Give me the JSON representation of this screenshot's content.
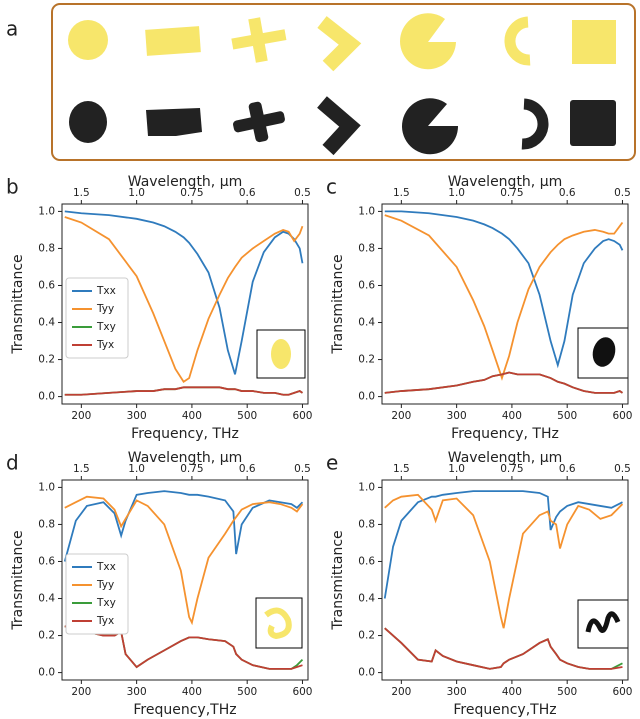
{
  "panel_a": {
    "label": "a"
  },
  "chart_data": [
    {
      "type": "line",
      "panel_label": "b",
      "x2_title": "Wavelength, µm",
      "x_title": "Frequency, THz",
      "y_title": "Transmittance",
      "xlim": [
        165,
        610
      ],
      "xticks": [
        200,
        300,
        400,
        500,
        600
      ],
      "x2lim": [
        1.81818,
        0.491803
      ],
      "x2scale": "reciprocal",
      "x2ticks": [
        1.5,
        {
          "value": 1,
          "label": "1.0"
        },
        0.75,
        0.6,
        0.5
      ],
      "ylim": [
        -0.04,
        1.04
      ],
      "yticks": [
        {
          "value": 0,
          "label": "0.0"
        },
        0.2,
        0.4,
        0.6,
        0.8,
        {
          "value": 1,
          "label": "1.0"
        }
      ],
      "legend": true,
      "legend_loc": "center left",
      "x": [
        170,
        200,
        250,
        300,
        330,
        350,
        370,
        385,
        395,
        410,
        430,
        450,
        465,
        478,
        490,
        510,
        530,
        550,
        565,
        575,
        585,
        595,
        600
      ],
      "series": [
        {
          "name": "Txx",
          "color": "#2f7bbd",
          "values": [
            1.0,
            0.99,
            0.98,
            0.96,
            0.94,
            0.92,
            0.89,
            0.86,
            0.83,
            0.77,
            0.67,
            0.48,
            0.25,
            0.12,
            0.3,
            0.62,
            0.78,
            0.86,
            0.89,
            0.88,
            0.85,
            0.8,
            0.72
          ]
        },
        {
          "name": "Tyy",
          "color": "#f5922f",
          "values": [
            0.97,
            0.94,
            0.85,
            0.65,
            0.45,
            0.3,
            0.15,
            0.08,
            0.1,
            0.25,
            0.42,
            0.55,
            0.64,
            0.7,
            0.75,
            0.8,
            0.84,
            0.88,
            0.9,
            0.89,
            0.84,
            0.88,
            0.92
          ]
        },
        {
          "name": "Txy",
          "color": "#3a9c3a",
          "values": [
            0.01,
            0.01,
            0.02,
            0.03,
            0.03,
            0.04,
            0.04,
            0.05,
            0.05,
            0.05,
            0.05,
            0.05,
            0.04,
            0.04,
            0.03,
            0.03,
            0.02,
            0.02,
            0.01,
            0.01,
            0.02,
            0.03,
            0.02
          ]
        },
        {
          "name": "Tyx",
          "color": "#bf3f34",
          "values": [
            0.01,
            0.01,
            0.02,
            0.03,
            0.03,
            0.04,
            0.04,
            0.05,
            0.05,
            0.05,
            0.05,
            0.05,
            0.04,
            0.04,
            0.03,
            0.03,
            0.02,
            0.02,
            0.01,
            0.01,
            0.02,
            0.03,
            0.02
          ]
        }
      ]
    },
    {
      "type": "line",
      "panel_label": "c",
      "x2_title": "Wavelength, µm",
      "x_title": "Frequency, THz",
      "y_title": "Transmittance",
      "xlim": [
        165,
        610
      ],
      "xticks": [
        200,
        300,
        400,
        500,
        600
      ],
      "x2lim": [
        1.81818,
        0.491803
      ],
      "x2scale": "reciprocal",
      "x2ticks": [
        1.5,
        {
          "value": 1,
          "label": "1.0"
        },
        0.75,
        0.6,
        0.5
      ],
      "ylim": [
        -0.04,
        1.04
      ],
      "yticks": [
        {
          "value": 0,
          "label": "0.0"
        },
        0.2,
        0.4,
        0.6,
        0.8,
        {
          "value": 1,
          "label": "1.0"
        }
      ],
      "legend": false,
      "x": [
        170,
        200,
        250,
        300,
        330,
        350,
        365,
        382,
        395,
        410,
        430,
        450,
        470,
        483,
        495,
        510,
        530,
        550,
        565,
        575,
        585,
        595,
        600
      ],
      "series": [
        {
          "name": "Txx",
          "color": "#2f7bbd",
          "values": [
            1.0,
            1.0,
            0.99,
            0.97,
            0.95,
            0.93,
            0.91,
            0.88,
            0.85,
            0.8,
            0.72,
            0.55,
            0.3,
            0.17,
            0.3,
            0.55,
            0.72,
            0.8,
            0.84,
            0.85,
            0.84,
            0.82,
            0.79
          ]
        },
        {
          "name": "Tyy",
          "color": "#f5922f",
          "values": [
            0.98,
            0.95,
            0.87,
            0.7,
            0.52,
            0.38,
            0.25,
            0.1,
            0.22,
            0.4,
            0.58,
            0.7,
            0.78,
            0.82,
            0.85,
            0.87,
            0.89,
            0.9,
            0.89,
            0.88,
            0.88,
            0.92,
            0.94
          ]
        },
        {
          "name": "Txy",
          "color": "#3a9c3a",
          "values": [
            0.02,
            0.03,
            0.04,
            0.06,
            0.08,
            0.09,
            0.11,
            0.12,
            0.13,
            0.12,
            0.12,
            0.12,
            0.1,
            0.08,
            0.07,
            0.05,
            0.03,
            0.02,
            0.02,
            0.02,
            0.02,
            0.03,
            0.02
          ]
        },
        {
          "name": "Tyx",
          "color": "#bf3f34",
          "values": [
            0.02,
            0.03,
            0.04,
            0.06,
            0.08,
            0.09,
            0.11,
            0.12,
            0.13,
            0.12,
            0.12,
            0.12,
            0.1,
            0.08,
            0.07,
            0.05,
            0.03,
            0.02,
            0.02,
            0.02,
            0.02,
            0.03,
            0.02
          ]
        }
      ]
    },
    {
      "type": "line",
      "panel_label": "d",
      "x2_title": "Wavelength, µm",
      "x_title": "Frequency,THz",
      "y_title": "Transmittance",
      "xlim": [
        165,
        610
      ],
      "xticks": [
        200,
        300,
        400,
        500,
        600
      ],
      "x2lim": [
        1.81818,
        0.491803
      ],
      "x2scale": "reciprocal",
      "x2ticks": [
        1.5,
        {
          "value": 1,
          "label": "1.0"
        },
        0.75,
        0.6,
        0.5
      ],
      "ylim": [
        -0.04,
        1.04
      ],
      "yticks": [
        {
          "value": 0,
          "label": "0.0"
        },
        0.2,
        0.4,
        0.6,
        0.8,
        {
          "value": 1,
          "label": "1.0"
        }
      ],
      "legend": true,
      "legend_loc": "center left",
      "x": [
        170,
        190,
        210,
        240,
        260,
        272,
        280,
        300,
        320,
        350,
        380,
        395,
        400,
        410,
        430,
        460,
        475,
        480,
        490,
        510,
        540,
        560,
        580,
        590,
        600
      ],
      "series": [
        {
          "name": "Txx",
          "color": "#2f7bbd",
          "values": [
            0.6,
            0.82,
            0.9,
            0.92,
            0.86,
            0.74,
            0.82,
            0.96,
            0.97,
            0.98,
            0.97,
            0.96,
            0.96,
            0.96,
            0.95,
            0.93,
            0.87,
            0.64,
            0.8,
            0.89,
            0.93,
            0.92,
            0.91,
            0.89,
            0.92
          ]
        },
        {
          "name": "Tyy",
          "color": "#f5922f",
          "values": [
            0.89,
            0.92,
            0.95,
            0.94,
            0.88,
            0.79,
            0.83,
            0.93,
            0.9,
            0.8,
            0.55,
            0.3,
            0.27,
            0.4,
            0.62,
            0.75,
            0.82,
            0.84,
            0.88,
            0.91,
            0.92,
            0.91,
            0.89,
            0.87,
            0.91
          ]
        },
        {
          "name": "Txy",
          "color": "#3a9c3a",
          "values": [
            0.25,
            0.24,
            0.22,
            0.2,
            0.2,
            0.22,
            0.1,
            0.03,
            0.07,
            0.12,
            0.17,
            0.19,
            0.19,
            0.19,
            0.18,
            0.17,
            0.14,
            0.1,
            0.07,
            0.04,
            0.02,
            0.02,
            0.02,
            0.04,
            0.07
          ]
        },
        {
          "name": "Tyx",
          "color": "#bf3f34",
          "values": [
            0.25,
            0.24,
            0.22,
            0.2,
            0.2,
            0.22,
            0.1,
            0.03,
            0.07,
            0.12,
            0.17,
            0.19,
            0.19,
            0.19,
            0.18,
            0.17,
            0.14,
            0.1,
            0.07,
            0.04,
            0.02,
            0.02,
            0.02,
            0.03,
            0.04
          ]
        }
      ]
    },
    {
      "type": "line",
      "panel_label": "e",
      "x2_title": "Wavelength, µm",
      "x_title": "Frequency,THz",
      "y_title": "Transmittance",
      "xlim": [
        165,
        610
      ],
      "xticks": [
        200,
        300,
        400,
        500,
        600
      ],
      "x2lim": [
        1.81818,
        0.491803
      ],
      "x2scale": "reciprocal",
      "x2ticks": [
        1.5,
        {
          "value": 1,
          "label": "1.0"
        },
        0.75,
        0.6,
        0.5
      ],
      "ylim": [
        -0.04,
        1.04
      ],
      "yticks": [
        {
          "value": 0,
          "label": "0.0"
        },
        0.2,
        0.4,
        0.6,
        0.8,
        {
          "value": 1,
          "label": "1.0"
        }
      ],
      "legend": false,
      "x": [
        170,
        185,
        200,
        230,
        255,
        262,
        275,
        300,
        330,
        360,
        380,
        385,
        395,
        420,
        450,
        465,
        470,
        480,
        487,
        500,
        520,
        540,
        560,
        580,
        600
      ],
      "series": [
        {
          "name": "Txx",
          "color": "#2f7bbd",
          "values": [
            0.4,
            0.68,
            0.82,
            0.92,
            0.95,
            0.95,
            0.96,
            0.97,
            0.98,
            0.98,
            0.98,
            0.98,
            0.98,
            0.98,
            0.97,
            0.95,
            0.77,
            0.84,
            0.87,
            0.9,
            0.92,
            0.91,
            0.9,
            0.89,
            0.92
          ]
        },
        {
          "name": "Tyy",
          "color": "#f5922f",
          "values": [
            0.89,
            0.93,
            0.95,
            0.96,
            0.88,
            0.82,
            0.93,
            0.94,
            0.85,
            0.6,
            0.3,
            0.24,
            0.4,
            0.75,
            0.85,
            0.87,
            0.82,
            0.8,
            0.67,
            0.8,
            0.9,
            0.88,
            0.83,
            0.85,
            0.91
          ]
        },
        {
          "name": "Txy",
          "color": "#3a9c3a",
          "values": [
            0.24,
            0.2,
            0.16,
            0.07,
            0.06,
            0.12,
            0.09,
            0.06,
            0.04,
            0.02,
            0.03,
            0.05,
            0.07,
            0.1,
            0.16,
            0.18,
            0.14,
            0.1,
            0.07,
            0.05,
            0.03,
            0.02,
            0.02,
            0.02,
            0.05
          ]
        },
        {
          "name": "Tyx",
          "color": "#bf3f34",
          "values": [
            0.24,
            0.2,
            0.16,
            0.07,
            0.06,
            0.12,
            0.09,
            0.06,
            0.04,
            0.02,
            0.03,
            0.05,
            0.07,
            0.1,
            0.16,
            0.18,
            0.14,
            0.1,
            0.07,
            0.05,
            0.03,
            0.02,
            0.02,
            0.02,
            0.03
          ]
        }
      ]
    }
  ]
}
